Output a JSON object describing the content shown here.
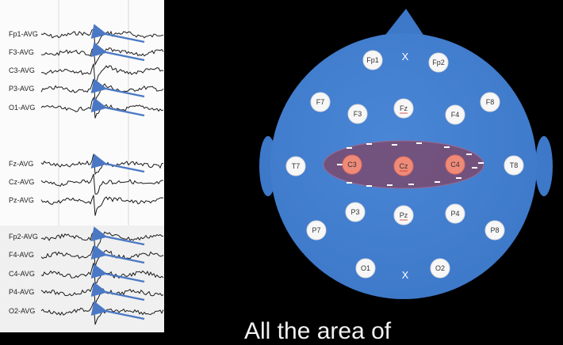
{
  "eeg": {
    "channels": [
      {
        "label": "Fp1-AVG",
        "arrow": true
      },
      {
        "label": "F3-AVG",
        "arrow": true
      },
      {
        "label": "C3-AVG",
        "arrow": false
      },
      {
        "label": "P3-AVG",
        "arrow": true
      },
      {
        "label": "O1-AVG",
        "arrow": true
      },
      {
        "label": "Fz-AVG",
        "arrow": true
      },
      {
        "label": "Cz-AVG",
        "arrow": false
      },
      {
        "label": "Pz-AVG",
        "arrow": false
      },
      {
        "label": "Fp2-AVG",
        "arrow": true
      },
      {
        "label": "F4-AVG",
        "arrow": true
      },
      {
        "label": "C4-AVG",
        "arrow": true
      },
      {
        "label": "P4-AVG",
        "arrow": true
      },
      {
        "label": "O2-AVG",
        "arrow": true
      }
    ],
    "trace_color": "#1a1a1a",
    "arrow_color": "#4a78c4"
  },
  "head": {
    "fill_color": "#3d78c9",
    "field_color": "#7a4a6e",
    "electrodes": [
      "Fp1",
      "Fp2",
      "F7",
      "F3",
      "Fz",
      "F4",
      "F8",
      "T7",
      "C3",
      "Cz",
      "C4",
      "T8",
      "P3",
      "Pz",
      "P4",
      "P7",
      "P8",
      "O1",
      "O2"
    ],
    "highlighted": [
      "C3",
      "Cz",
      "C4"
    ],
    "nasion_mark": "X",
    "inion_mark": "X"
  },
  "caption": "All the area of"
}
